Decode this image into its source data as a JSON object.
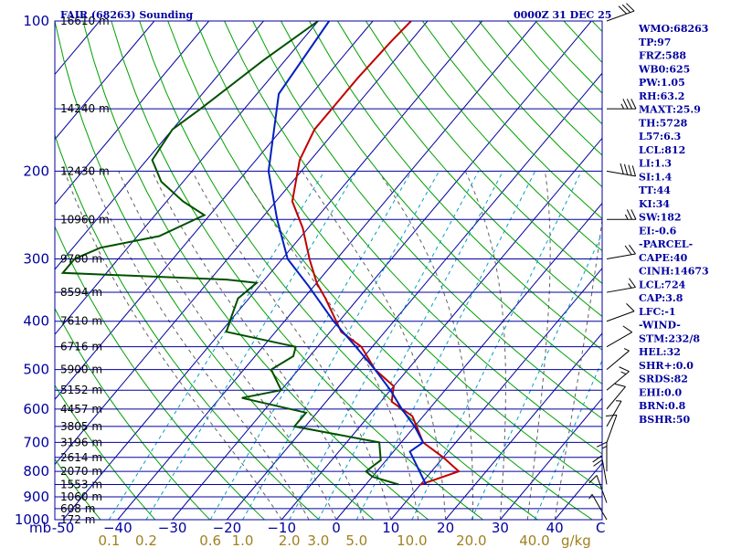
{
  "header": {
    "station": "FAIR (68263) Sounding",
    "time": "0000Z 31 DEC 25"
  },
  "colors": {
    "isobar": "#0000a0",
    "isotherm": "#0000a0",
    "dry_adiabat": "#00a000",
    "moist_adiabat": "#606060",
    "mixing_ratio": "#00a0c0",
    "temperature": "#c00000",
    "dewpoint": "#005000",
    "parcel": "#0020c0",
    "wind": "#000000"
  },
  "chart_data": {
    "type": "line",
    "title": "FAIR (68263) Sounding 0000Z 31 DEC 25",
    "x_axis": {
      "label": "C",
      "range": [
        -50,
        50
      ],
      "ticks": [
        -50,
        -40,
        -30,
        -20,
        -10,
        0,
        10,
        20,
        30,
        40
      ],
      "tick_labels": [
        "-50",
        "−40",
        "−30",
        "−20",
        "−10",
        "0",
        "10",
        "20",
        "30",
        "40"
      ]
    },
    "y_axis": {
      "label": "mb",
      "scale": "log",
      "range": [
        1000,
        100
      ],
      "ticks": [
        100,
        200,
        300,
        400,
        500,
        600,
        700,
        800,
        900,
        1000
      ],
      "tick_labels": [
        "100",
        "200",
        "300",
        "400",
        "500",
        "600",
        "700",
        "800",
        "900",
        "1000"
      ]
    },
    "mixing_ratio_axis": {
      "label": "g/kg",
      "values": [
        0.1,
        0.2,
        0.6,
        1.0,
        2.0,
        3.0,
        5.0,
        10.0,
        20.0,
        40.0
      ],
      "tick_labels": [
        "0.1",
        "0.2",
        "0.6",
        "1.0",
        "2.0",
        "3.0",
        "5.0",
        "10.0",
        "20.0",
        "40.0"
      ]
    },
    "height_labels": [
      {
        "p": 100,
        "label": "16610 m"
      },
      {
        "p": 150,
        "label": "14240 m"
      },
      {
        "p": 200,
        "label": "12430 m"
      },
      {
        "p": 250,
        "label": "10960 m"
      },
      {
        "p": 300,
        "label": "9700 m"
      },
      {
        "p": 350,
        "label": "8594 m"
      },
      {
        "p": 400,
        "label": "7610 m"
      },
      {
        "p": 450,
        "label": "6716 m"
      },
      {
        "p": 500,
        "label": "5900 m"
      },
      {
        "p": 550,
        "label": "5152 m"
      },
      {
        "p": 600,
        "label": "4457 m"
      },
      {
        "p": 650,
        "label": "3805 m"
      },
      {
        "p": 700,
        "label": "3196 m"
      },
      {
        "p": 750,
        "label": "2614 m"
      },
      {
        "p": 800,
        "label": "2070 m"
      },
      {
        "p": 850,
        "label": "1553 m"
      },
      {
        "p": 900,
        "label": "1060 m"
      },
      {
        "p": 950,
        "label": "608 m"
      },
      {
        "p": 1000,
        "label": "172 m"
      }
    ],
    "series": [
      {
        "name": "Temperature",
        "points": [
          [
            100,
            -63
          ],
          [
            110,
            -63.5
          ],
          [
            130,
            -64
          ],
          [
            150,
            -64
          ],
          [
            165,
            -64
          ],
          [
            190,
            -62
          ],
          [
            230,
            -57
          ],
          [
            260,
            -51
          ],
          [
            300,
            -45
          ],
          [
            335,
            -40
          ],
          [
            360,
            -36
          ],
          [
            420,
            -28
          ],
          [
            450,
            -22
          ],
          [
            500,
            -16
          ],
          [
            540,
            -10
          ],
          [
            580,
            -8
          ],
          [
            620,
            -2
          ],
          [
            700,
            4
          ],
          [
            750,
            10
          ],
          [
            800,
            15
          ],
          [
            830,
            12
          ],
          [
            850,
            10
          ]
        ]
      },
      {
        "name": "Dewpoint",
        "points": [
          [
            100,
            -80
          ],
          [
            120,
            -84
          ],
          [
            150,
            -88
          ],
          [
            165,
            -90
          ],
          [
            190,
            -89
          ],
          [
            210,
            -84
          ],
          [
            230,
            -77
          ],
          [
            245,
            -71
          ],
          [
            270,
            -76
          ],
          [
            285,
            -85
          ],
          [
            300,
            -88
          ],
          [
            320,
            -88
          ],
          [
            330,
            -57
          ],
          [
            335,
            -51
          ],
          [
            360,
            -52
          ],
          [
            400,
            -50
          ],
          [
            420,
            -49
          ],
          [
            450,
            -34
          ],
          [
            470,
            -33
          ],
          [
            500,
            -35
          ],
          [
            550,
            -30
          ],
          [
            570,
            -36
          ],
          [
            610,
            -22
          ],
          [
            650,
            -22
          ],
          [
            700,
            -4
          ],
          [
            760,
            -1
          ],
          [
            800,
            -2
          ],
          [
            820,
            0
          ],
          [
            850,
            6
          ]
        ]
      },
      {
        "name": "Parcel",
        "points": [
          [
            100,
            -78
          ],
          [
            140,
            -76
          ],
          [
            200,
            -66
          ],
          [
            250,
            -57
          ],
          [
            300,
            -49
          ],
          [
            340,
            -41
          ],
          [
            400,
            -31
          ],
          [
            450,
            -23
          ],
          [
            500,
            -16
          ],
          [
            550,
            -10
          ],
          [
            600,
            -5
          ],
          [
            650,
            0
          ],
          [
            700,
            4
          ],
          [
            730,
            3
          ],
          [
            850,
            11
          ]
        ]
      }
    ],
    "wind_barbs": [
      {
        "p": 100,
        "spd": 30,
        "dir": 250
      },
      {
        "p": 150,
        "spd": 35,
        "dir": 270
      },
      {
        "p": 200,
        "spd": 40,
        "dir": 280
      },
      {
        "p": 250,
        "spd": 25,
        "dir": 270
      },
      {
        "p": 300,
        "spd": 20,
        "dir": 260
      },
      {
        "p": 350,
        "spd": 15,
        "dir": 260
      },
      {
        "p": 400,
        "spd": 10,
        "dir": 250
      },
      {
        "p": 450,
        "spd": 10,
        "dir": 240
      },
      {
        "p": 500,
        "spd": 5,
        "dir": 230
      },
      {
        "p": 550,
        "spd": 15,
        "dir": 230
      },
      {
        "p": 600,
        "spd": 10,
        "dir": 220
      },
      {
        "p": 650,
        "spd": 5,
        "dir": 210
      },
      {
        "p": 700,
        "spd": 10,
        "dir": 200
      },
      {
        "p": 800,
        "spd": 15,
        "dir": 180
      },
      {
        "p": 850,
        "spd": 20,
        "dir": 170
      },
      {
        "p": 925,
        "spd": 10,
        "dir": 160
      },
      {
        "p": 1000,
        "spd": 5,
        "dir": 150
      }
    ],
    "indices": [
      "WMO:68263",
      "TP:97",
      "FRZ:588",
      "WB0:625",
      "PW:1.05",
      "RH:63.2",
      "MAXT:25.9",
      "TH:5728",
      "L57:6.3",
      "LCL:812",
      "LI:1.3",
      "SI:1.4",
      "TT:44",
      "KI:34",
      "SW:182",
      "EI:-0.6",
      "-PARCEL-",
      "CAPE:40",
      "CINH:14673",
      "LCL:724",
      "CAP:3.8",
      "LFC:-1",
      "-WIND-",
      "STM:232/8",
      "HEL:32",
      "SHR+:0.0",
      "SRDS:82",
      "EHI:0.0",
      "BRN:0.8",
      "BSHR:50"
    ]
  }
}
